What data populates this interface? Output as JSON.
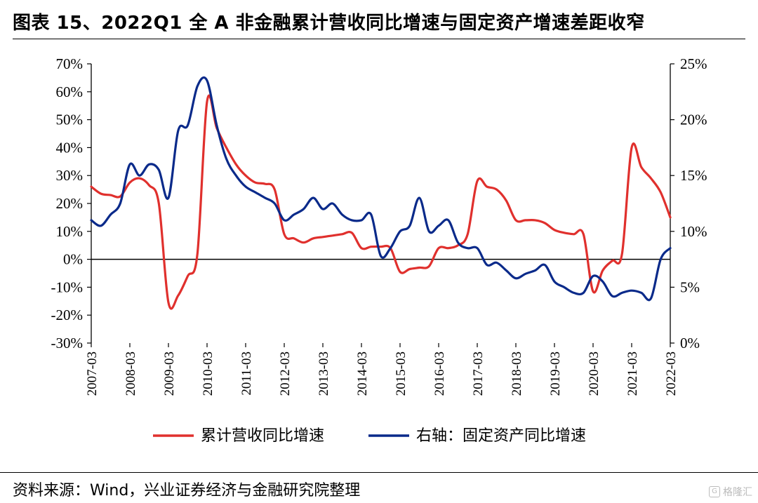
{
  "header": {
    "title": "图表 15、2022Q1 全 A 非金融累计营收同比增速与固定资产增速差距收窄"
  },
  "footer": {
    "source": "资料来源：Wind，兴业证券经济与金融研究院整理",
    "watermark": "格隆汇"
  },
  "colors": {
    "series_red": "#e0302d",
    "series_blue": "#0a2a8a",
    "axis": "#000000"
  },
  "chart_data": {
    "type": "line",
    "title": "",
    "x_ticks": [
      "2007-03",
      "2008-03",
      "2009-03",
      "2010-03",
      "2011-03",
      "2012-03",
      "2013-03",
      "2014-03",
      "2015-03",
      "2016-03",
      "2017-03",
      "2018-03",
      "2019-03",
      "2020-03",
      "2021-03",
      "2022-03"
    ],
    "y_left": {
      "ticks": [
        "70%",
        "60%",
        "50%",
        "40%",
        "30%",
        "20%",
        "10%",
        "0%",
        "-10%",
        "-20%",
        "-30%"
      ],
      "ylim": [
        -30,
        70
      ]
    },
    "y_right": {
      "ticks": [
        "25%",
        "20%",
        "15%",
        "10%",
        "5%",
        "0%"
      ],
      "ylim": [
        0,
        25
      ]
    },
    "legend_position": "bottom-center",
    "series": [
      {
        "name": "累计营收同比增速",
        "axis": "left",
        "color": "#e0302d",
        "points": [
          [
            2007.0,
            26
          ],
          [
            2007.25,
            23.5
          ],
          [
            2007.5,
            23
          ],
          [
            2007.75,
            22.5
          ],
          [
            2008.0,
            27.5
          ],
          [
            2008.25,
            29
          ],
          [
            2008.5,
            26.5
          ],
          [
            2008.75,
            20
          ],
          [
            2009.0,
            -15.5
          ],
          [
            2009.25,
            -13
          ],
          [
            2009.5,
            -6
          ],
          [
            2009.75,
            2
          ],
          [
            2010.0,
            56.5
          ],
          [
            2010.25,
            47
          ],
          [
            2010.5,
            40
          ],
          [
            2010.75,
            34
          ],
          [
            2011.0,
            30
          ],
          [
            2011.25,
            27.5
          ],
          [
            2011.5,
            27
          ],
          [
            2011.75,
            25
          ],
          [
            2012.0,
            9
          ],
          [
            2012.25,
            7.5
          ],
          [
            2012.5,
            6
          ],
          [
            2012.75,
            7.5
          ],
          [
            2013.0,
            8
          ],
          [
            2013.25,
            8.5
          ],
          [
            2013.5,
            9
          ],
          [
            2013.75,
            9.5
          ],
          [
            2014.0,
            4
          ],
          [
            2014.25,
            4.5
          ],
          [
            2014.5,
            4.5
          ],
          [
            2014.75,
            4
          ],
          [
            2015.0,
            -4.5
          ],
          [
            2015.25,
            -3.5
          ],
          [
            2015.5,
            -3
          ],
          [
            2015.75,
            -2.5
          ],
          [
            2016.0,
            4
          ],
          [
            2016.25,
            4
          ],
          [
            2016.5,
            5
          ],
          [
            2016.75,
            9
          ],
          [
            2017.0,
            28
          ],
          [
            2017.25,
            26
          ],
          [
            2017.5,
            25
          ],
          [
            2017.75,
            21
          ],
          [
            2018.0,
            14
          ],
          [
            2018.25,
            14
          ],
          [
            2018.5,
            14
          ],
          [
            2018.75,
            13
          ],
          [
            2019.0,
            10.5
          ],
          [
            2019.25,
            9.5
          ],
          [
            2019.5,
            9
          ],
          [
            2019.75,
            9
          ],
          [
            2020.0,
            -11.5
          ],
          [
            2020.25,
            -4
          ],
          [
            2020.5,
            -0.5
          ],
          [
            2020.75,
            2
          ],
          [
            2021.0,
            40
          ],
          [
            2021.25,
            33
          ],
          [
            2021.5,
            29
          ],
          [
            2021.75,
            24
          ],
          [
            2022.0,
            15
          ]
        ]
      },
      {
        "name": "右轴：固定资产同比增速",
        "axis": "right",
        "color": "#0a2a8a",
        "points": [
          [
            2007.0,
            11
          ],
          [
            2007.25,
            10.5
          ],
          [
            2007.5,
            11.5
          ],
          [
            2007.75,
            12.5
          ],
          [
            2008.0,
            16
          ],
          [
            2008.25,
            15
          ],
          [
            2008.5,
            16
          ],
          [
            2008.75,
            15.5
          ],
          [
            2009.0,
            13
          ],
          [
            2009.25,
            19
          ],
          [
            2009.5,
            19.5
          ],
          [
            2009.75,
            23
          ],
          [
            2010.0,
            23.5
          ],
          [
            2010.25,
            19.5
          ],
          [
            2010.5,
            16.5
          ],
          [
            2010.75,
            15
          ],
          [
            2011.0,
            14
          ],
          [
            2011.25,
            13.5
          ],
          [
            2011.5,
            13
          ],
          [
            2011.75,
            12.5
          ],
          [
            2012.0,
            11
          ],
          [
            2012.25,
            11.5
          ],
          [
            2012.5,
            12
          ],
          [
            2012.75,
            13
          ],
          [
            2013.0,
            12
          ],
          [
            2013.25,
            12.5
          ],
          [
            2013.5,
            11.5
          ],
          [
            2013.75,
            11
          ],
          [
            2014.0,
            11
          ],
          [
            2014.25,
            11.5
          ],
          [
            2014.5,
            7.8
          ],
          [
            2014.75,
            8.5
          ],
          [
            2015.0,
            10
          ],
          [
            2015.25,
            10.5
          ],
          [
            2015.5,
            13
          ],
          [
            2015.75,
            10
          ],
          [
            2016.0,
            10.5
          ],
          [
            2016.25,
            11
          ],
          [
            2016.5,
            9
          ],
          [
            2016.75,
            8.5
          ],
          [
            2017.0,
            8.5
          ],
          [
            2017.25,
            7
          ],
          [
            2017.5,
            7.2
          ],
          [
            2017.75,
            6.5
          ],
          [
            2018.0,
            5.8
          ],
          [
            2018.25,
            6.2
          ],
          [
            2018.5,
            6.5
          ],
          [
            2018.75,
            7
          ],
          [
            2019.0,
            5.5
          ],
          [
            2019.25,
            5
          ],
          [
            2019.5,
            4.5
          ],
          [
            2019.75,
            4.5
          ],
          [
            2020.0,
            6
          ],
          [
            2020.25,
            5.5
          ],
          [
            2020.5,
            4.2
          ],
          [
            2020.75,
            4.5
          ],
          [
            2021.0,
            4.7
          ],
          [
            2021.25,
            4.5
          ],
          [
            2021.5,
            4
          ],
          [
            2021.75,
            7.5
          ],
          [
            2022.0,
            8.5
          ]
        ]
      }
    ]
  }
}
